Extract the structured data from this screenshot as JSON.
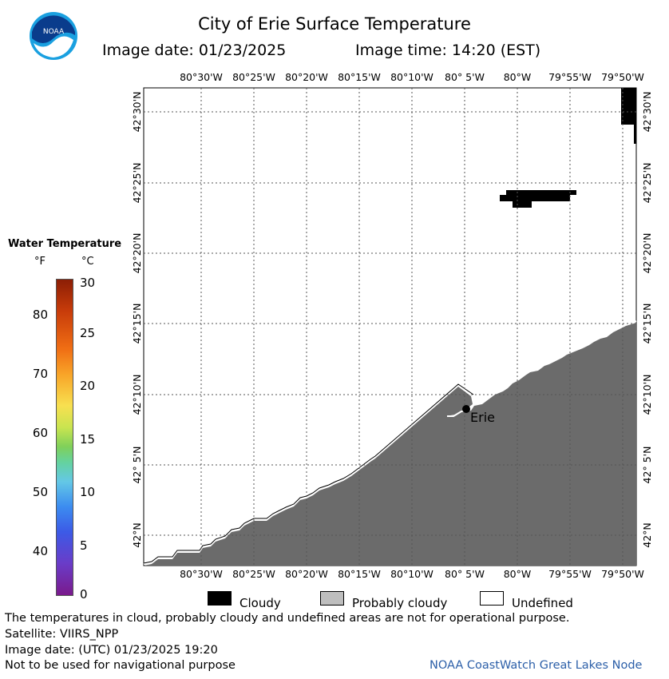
{
  "header": {
    "title": "City of Erie Surface Temperature",
    "image_date": "Image date: 01/23/2025",
    "image_time": "Image time: 14:20 (EST)"
  },
  "logo": {
    "text": "NOAA",
    "icon": "noaa-logo-icon",
    "color_outer": "#1aa0e0",
    "color_inner": "#0a3c8c"
  },
  "map": {
    "lon_labels": [
      "80°30'W",
      "80°25'W",
      "80°20'W",
      "80°15'W",
      "80°10'W",
      "80° 5'W",
      "80°W",
      "79°55'W",
      "79°50'W"
    ],
    "lat_labels": [
      "42°30'N",
      "42°25'N",
      "42°20'N",
      "42°15'N",
      "42°10'N",
      "42° 5'N",
      "42°N"
    ],
    "city_label": "Erie",
    "colors": {
      "land": "#6b6b6b",
      "cloud": "#000000",
      "grid": "#555555"
    }
  },
  "legend": {
    "title": "Water Temperature",
    "unit_f": "°F",
    "unit_c": "°C",
    "f_ticks": [
      "80",
      "70",
      "60",
      "50",
      "40"
    ],
    "c_ticks": [
      "30",
      "25",
      "20",
      "15",
      "10",
      "5",
      "0"
    ]
  },
  "key": {
    "cloudy": "Cloudy",
    "probably_cloudy": "Probably cloudy",
    "undefined": "Undefined",
    "colors": {
      "cloudy": "#000000",
      "probably_cloudy": "#bebebe",
      "undefined": "#ffffff"
    }
  },
  "footer": {
    "line1": "The temperatures in cloud, probably cloudy and undefined areas are not for operational purpose.",
    "line2": "Satellite: VIIRS_NPP",
    "line3": "Image date: (UTC) 01/23/2025  19:20",
    "line4": "Not to be used for navigational purpose",
    "credit": "NOAA CoastWatch Great Lakes Node"
  }
}
